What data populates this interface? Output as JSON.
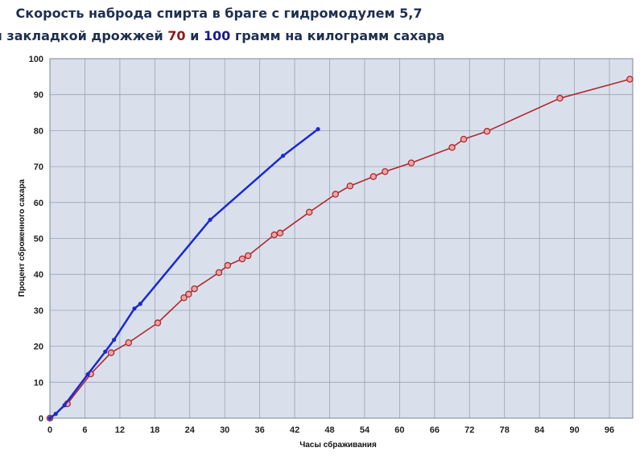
{
  "chart_data": {
    "type": "line",
    "title_line1": "Скорость наброда спирта в браге с гидромодулем 5,7",
    "title_line2": {
      "prefix": "и закладкой дрожжей ",
      "num1": "70",
      "mid": " и ",
      "num2": "100",
      "suffix": " грамм на килограмм сахара"
    },
    "xlabel": "Часы сбраживания",
    "ylabel": "Процент сброженного сахара",
    "xlim": [
      0,
      100
    ],
    "ylim": [
      0,
      100
    ],
    "xticks": [
      0,
      6,
      12,
      18,
      24,
      30,
      36,
      42,
      48,
      54,
      60,
      66,
      72,
      78,
      84,
      90,
      96
    ],
    "yticks": [
      0,
      10,
      20,
      30,
      40,
      50,
      60,
      70,
      80,
      90,
      100
    ],
    "grid": true,
    "colors": {
      "plot_bg": "#d9e0ec",
      "grid": "#9aa3b2",
      "title": "#1f2f4f",
      "series_70": "#b0282c",
      "series_100": "#1a2ad0",
      "num70": "#8b1a1a",
      "num100": "#1a1a8b"
    },
    "series": [
      {
        "key": "70",
        "color": "#b0282c",
        "marker": "hollow-circle",
        "points": [
          [
            0,
            0
          ],
          [
            3,
            4
          ],
          [
            7,
            12.3
          ],
          [
            10.5,
            18.2
          ],
          [
            13.5,
            21
          ],
          [
            18.5,
            26.5
          ],
          [
            23,
            33.5
          ],
          [
            23.8,
            34.5
          ],
          [
            24.8,
            36
          ],
          [
            29,
            40.5
          ],
          [
            30.5,
            42.5
          ],
          [
            33,
            44.3
          ],
          [
            34,
            45.2
          ],
          [
            38.5,
            51
          ],
          [
            39.5,
            51.5
          ],
          [
            44.5,
            57.3
          ],
          [
            49,
            62.3
          ],
          [
            51.5,
            64.6
          ],
          [
            55.5,
            67.2
          ],
          [
            57.5,
            68.6
          ],
          [
            62,
            71
          ],
          [
            69,
            75.3
          ],
          [
            71,
            77.6
          ],
          [
            75,
            79.8
          ],
          [
            87.5,
            89
          ],
          [
            99.5,
            94.3
          ]
        ]
      },
      {
        "key": "100",
        "color": "#1a2ad0",
        "marker": "dot",
        "points": [
          [
            0,
            0
          ],
          [
            1,
            1.2
          ],
          [
            2.5,
            3.6
          ],
          [
            6.5,
            12.2
          ],
          [
            9.5,
            18.5
          ],
          [
            11,
            21.8
          ],
          [
            14.5,
            30.5
          ],
          [
            15.5,
            31.8
          ],
          [
            27.5,
            55.2
          ],
          [
            40,
            73
          ],
          [
            46,
            80.4
          ]
        ]
      }
    ]
  }
}
